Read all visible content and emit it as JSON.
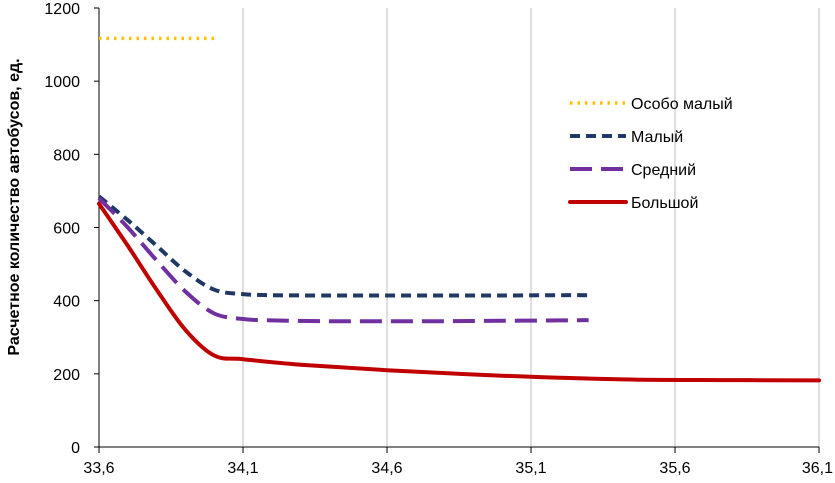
{
  "chart_data": {
    "type": "line",
    "title": "",
    "xlabel": "",
    "ylabel": "Расчетное количество автобусов, ед.",
    "xlim": [
      33.6,
      36.1
    ],
    "ylim": [
      0,
      1200
    ],
    "x_ticks": [
      "33,6",
      "34,1",
      "34,6",
      "35,1",
      "35,6",
      "36,1"
    ],
    "y_ticks": [
      "0",
      "200",
      "400",
      "600",
      "800",
      "1000",
      "1200"
    ],
    "grid": "vertical",
    "legend_position": "right",
    "series": [
      {
        "name": "Особо малый",
        "color": "#FFC000",
        "style": "dotted",
        "x": [
          33.6,
          33.7,
          33.8,
          33.9,
          34.0
        ],
        "y": [
          1117,
          1117,
          1117,
          1117,
          1117
        ]
      },
      {
        "name": "Малый",
        "color": "#1F3864",
        "style": "dashed",
        "x": [
          33.6,
          33.7,
          33.8,
          33.9,
          34.0,
          34.1,
          34.2,
          34.4,
          34.6,
          34.8,
          35.0,
          35.2,
          35.3
        ],
        "y": [
          685,
          620,
          550,
          480,
          430,
          418,
          415,
          414,
          414,
          414,
          414,
          415,
          415
        ]
      },
      {
        "name": "Средний",
        "color": "#7030A0",
        "style": "long-dash",
        "x": [
          33.6,
          33.7,
          33.8,
          33.9,
          34.0,
          34.1,
          34.2,
          34.4,
          34.6,
          34.8,
          35.0,
          35.2,
          35.3
        ],
        "y": [
          680,
          600,
          510,
          425,
          365,
          350,
          346,
          344,
          344,
          344,
          345,
          346,
          347
        ]
      },
      {
        "name": "Большой",
        "color": "#C00000",
        "style": "solid",
        "x": [
          33.6,
          33.7,
          33.8,
          33.9,
          34.0,
          34.1,
          34.3,
          34.6,
          35.0,
          35.4,
          35.8,
          36.1
        ],
        "y": [
          665,
          550,
          430,
          320,
          250,
          240,
          225,
          210,
          195,
          185,
          183,
          182
        ]
      }
    ]
  }
}
